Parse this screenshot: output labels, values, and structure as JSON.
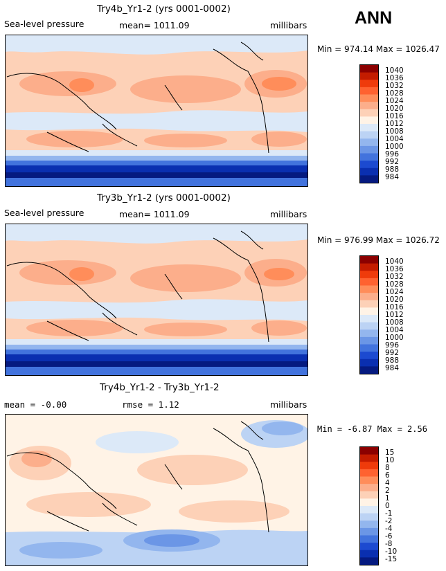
{
  "season": "ANN",
  "panels": [
    {
      "title": "Try4b_Yr1-2 (yrs 0001-0002)",
      "left_label": "Sea-level pressure",
      "center_label": "mean= 1011.09",
      "right_label": "millibars",
      "minmax": "Min = 974.14  Max = 1026.47",
      "levels": [
        "1040",
        "1036",
        "1032",
        "1028",
        "1024",
        "1020",
        "1016",
        "1012",
        "1008",
        "1004",
        "1000",
        "996",
        "992",
        "988",
        "984"
      ],
      "colors": [
        "#8b0000",
        "#c41c00",
        "#ef3b0b",
        "#ff6230",
        "#ff8d5a",
        "#fcae8b",
        "#fdd1b7",
        "#fff3e6",
        "#dce9f8",
        "#bcd3f4",
        "#93b6ee",
        "#6b96e6",
        "#4273dd",
        "#1c4ad0",
        "#0a2fb0",
        "#051a80"
      ]
    },
    {
      "title": "Try3b_Yr1-2 (yrs 0001-0002)",
      "left_label": "Sea-level pressure",
      "center_label": "mean= 1011.09",
      "right_label": "millibars",
      "minmax": "Min = 976.99  Max = 1026.72",
      "levels": [
        "1040",
        "1036",
        "1032",
        "1028",
        "1024",
        "1020",
        "1016",
        "1012",
        "1008",
        "1004",
        "1000",
        "996",
        "992",
        "988",
        "984"
      ],
      "colors": [
        "#8b0000",
        "#c41c00",
        "#ef3b0b",
        "#ff6230",
        "#ff8d5a",
        "#fcae8b",
        "#fdd1b7",
        "#fff3e6",
        "#dce9f8",
        "#bcd3f4",
        "#93b6ee",
        "#6b96e6",
        "#4273dd",
        "#1c4ad0",
        "#0a2fb0",
        "#051a80"
      ]
    },
    {
      "title": "Try4b_Yr1-2 - Try3b_Yr1-2",
      "left_label": "mean =   -0.00",
      "center_label": "rmse =    1.12",
      "right_label": "millibars",
      "minmax": "Min =   -6.87  Max =    2.56",
      "levels": [
        "15",
        "10",
        "8",
        "6",
        "4",
        "2",
        "1",
        "0",
        "-1",
        "-2",
        "-4",
        "-6",
        "-8",
        "-10",
        "-15"
      ],
      "colors": [
        "#8b0000",
        "#c41c00",
        "#ef3b0b",
        "#ff6230",
        "#ff8d5a",
        "#fcae8b",
        "#fdd1b7",
        "#fff3e6",
        "#dce9f8",
        "#bcd3f4",
        "#93b6ee",
        "#6b96e6",
        "#4273dd",
        "#1c4ad0",
        "#0a2fb0",
        "#051a80"
      ]
    }
  ]
}
